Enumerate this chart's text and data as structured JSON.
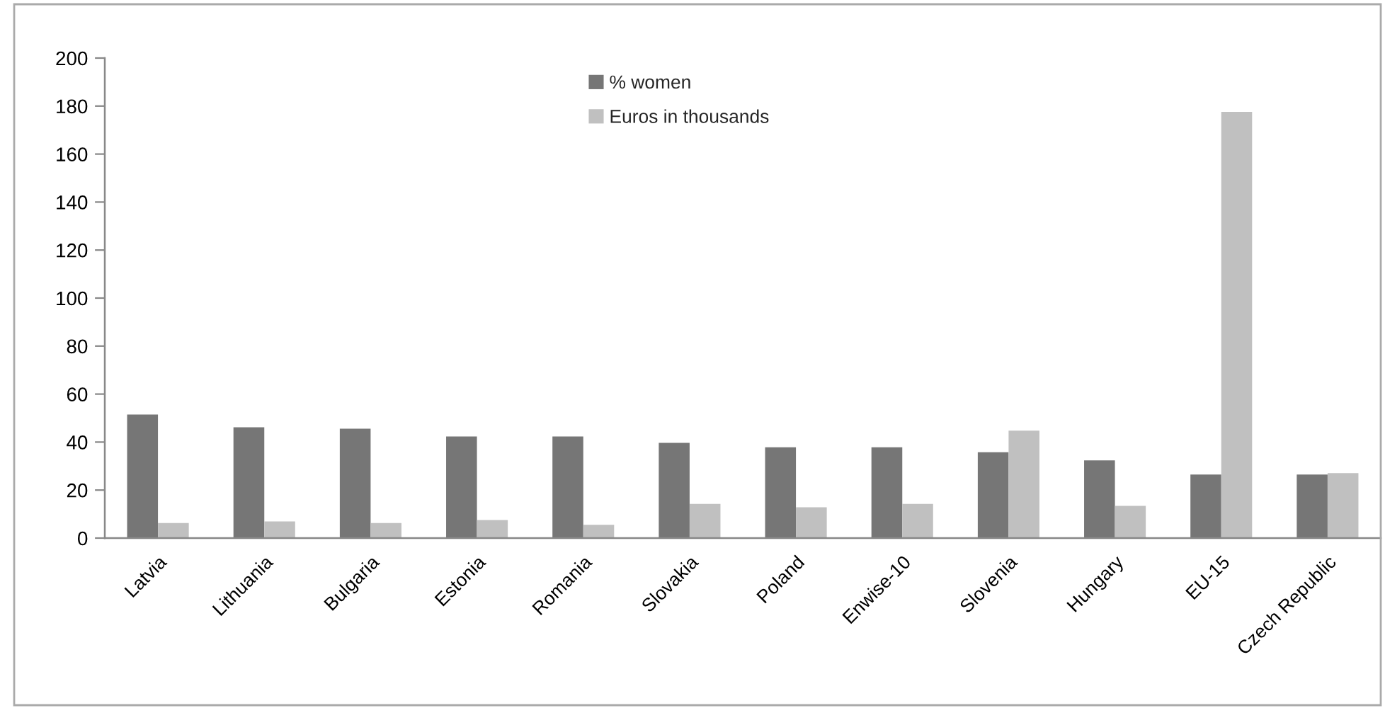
{
  "chart_data": {
    "type": "bar",
    "categories": [
      "Latvia",
      "Lithuania",
      "Bulgaria",
      "Estonia",
      "Romania",
      "Slovakia",
      "Poland",
      "Enwise-10",
      "Slovenia",
      "Hungary",
      "EU-15",
      "Czech Republic"
    ],
    "series": [
      {
        "name": "% women",
        "color": "#767676",
        "values": [
          51.5,
          46.2,
          45.6,
          42.3,
          42.3,
          39.7,
          37.8,
          37.8,
          35.8,
          32.4,
          26.5,
          26.5
        ]
      },
      {
        "name": "Euros in thousands",
        "color": "#c0c0c0",
        "values": [
          6.3,
          6.9,
          6.3,
          7.5,
          5.5,
          14.2,
          12.8,
          14.2,
          44.8,
          13.4,
          177.6,
          27.1
        ]
      }
    ],
    "ylim": [
      0,
      200
    ],
    "yticks": [
      0,
      20,
      40,
      60,
      80,
      100,
      120,
      140,
      160,
      180,
      200
    ],
    "grid": false,
    "legend": "top"
  }
}
